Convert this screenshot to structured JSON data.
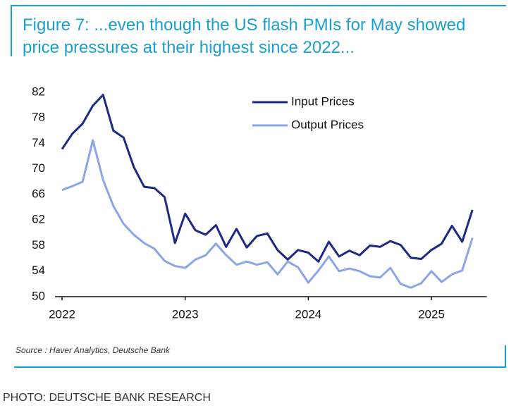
{
  "chart_data": {
    "type": "line",
    "title": "Figure 7: ...even though the US flash PMIs for May showed price pressures at their highest since 2022...",
    "source": "Source : Haver Analytics, Deutsche Bank",
    "caption": "PHOTO: DEUTSCHE BANK RESEARCH",
    "x": [
      2022,
      2022.083,
      2022.167,
      2022.25,
      2022.333,
      2022.417,
      2022.5,
      2022.583,
      2022.667,
      2022.75,
      2022.833,
      2022.917,
      2023,
      2023.083,
      2023.167,
      2023.25,
      2023.333,
      2023.417,
      2023.5,
      2023.583,
      2023.667,
      2023.75,
      2023.833,
      2023.917,
      2024,
      2024.083,
      2024.167,
      2024.25,
      2024.333,
      2024.417,
      2024.5,
      2024.583,
      2024.667,
      2024.75,
      2024.833,
      2024.917,
      2025,
      2025.083,
      2025.167,
      2025.25,
      2025.333
    ],
    "series": [
      {
        "name": "Input Prices",
        "color": "#1c2a84",
        "values": [
          73.1,
          75.5,
          77.1,
          79.9,
          81.6,
          76.0,
          74.9,
          70.3,
          67.2,
          67.0,
          65.6,
          58.4,
          63.0,
          60.4,
          59.7,
          61.2,
          57.8,
          60.6,
          57.7,
          59.5,
          59.9,
          57.3,
          55.8,
          57.3,
          56.9,
          55.5,
          58.6,
          56.3,
          57.2,
          56.5,
          58.0,
          57.8,
          58.7,
          58.1,
          56.1,
          55.9,
          57.3,
          58.3,
          61.1,
          58.6,
          63.6
        ]
      },
      {
        "name": "Output Prices",
        "color": "#8aa6e6",
        "values": [
          66.7,
          67.3,
          68.0,
          74.5,
          68.3,
          64.2,
          61.4,
          59.7,
          58.4,
          57.5,
          55.6,
          54.8,
          54.5,
          55.8,
          56.5,
          58.3,
          56.5,
          55.0,
          55.5,
          55.0,
          55.4,
          53.5,
          55.5,
          54.6,
          52.2,
          54.1,
          56.3,
          54.0,
          54.4,
          54.0,
          53.2,
          53.0,
          54.5,
          52.0,
          51.4,
          52.1,
          54.0,
          52.3,
          53.5,
          54.1,
          59.2
        ]
      }
    ],
    "xlim": [
      2022,
      2025.45
    ],
    "xticks": [
      2022,
      2023,
      2024,
      2025
    ],
    "ylim": [
      50,
      82
    ],
    "yticks": [
      50,
      54,
      58,
      62,
      66,
      70,
      74,
      78,
      82
    ],
    "grid": false,
    "legend": "top-center"
  }
}
